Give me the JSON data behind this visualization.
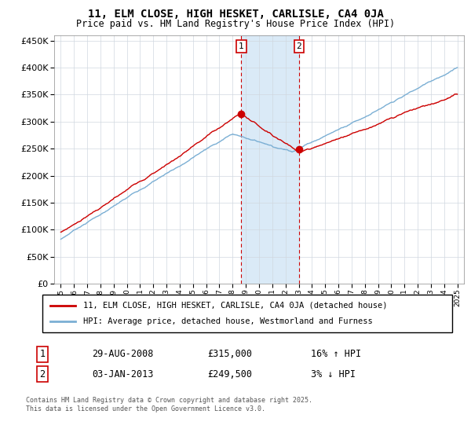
{
  "title": "11, ELM CLOSE, HIGH HESKET, CARLISLE, CA4 0JA",
  "subtitle": "Price paid vs. HM Land Registry's House Price Index (HPI)",
  "legend_line1": "11, ELM CLOSE, HIGH HESKET, CARLISLE, CA4 0JA (detached house)",
  "legend_line2": "HPI: Average price, detached house, Westmorland and Furness",
  "annotation1_label": "1",
  "annotation1_date": "29-AUG-2008",
  "annotation1_price": "£315,000",
  "annotation1_hpi": "16% ↑ HPI",
  "annotation2_label": "2",
  "annotation2_date": "03-JAN-2013",
  "annotation2_price": "£249,500",
  "annotation2_hpi": "3% ↓ HPI",
  "footnote": "Contains HM Land Registry data © Crown copyright and database right 2025.\nThis data is licensed under the Open Government Licence v3.0.",
  "sale1_year": 2008.66,
  "sale1_value": 315000,
  "sale2_year": 2013.01,
  "sale2_value": 249500,
  "hpi_color": "#7bafd4",
  "price_color": "#cc0000",
  "vline_color": "#cc0000",
  "shade_color": "#daeaf7",
  "ylim": [
    0,
    460000
  ],
  "yticks": [
    0,
    50000,
    100000,
    150000,
    200000,
    250000,
    300000,
    350000,
    400000,
    450000
  ],
  "xlim_start": 1994.5,
  "xlim_end": 2025.5,
  "background_color": "#f0f4f8"
}
